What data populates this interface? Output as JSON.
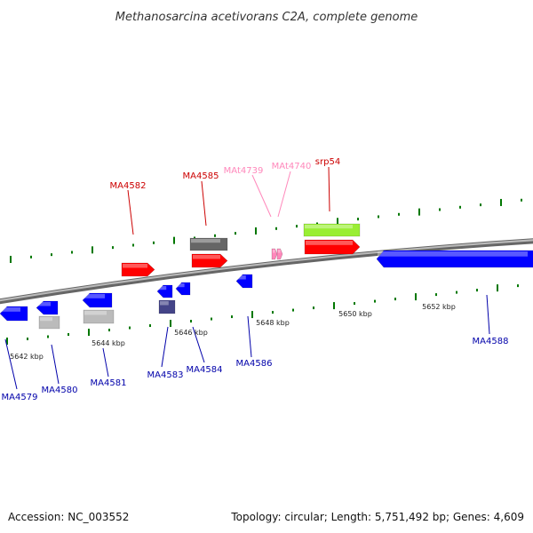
{
  "title": "Methanosarcina acetivorans C2A, complete genome",
  "footer": {
    "accession": "Accession: NC_003552",
    "summary": "Topology: circular; Length: 5,751,492 bp; Genes: 4,609"
  },
  "colors": {
    "red": "#ff0000",
    "blue": "#0000ff",
    "pink": "#ff88bb",
    "navy": "#0000aa",
    "dark_red": "#cc0000",
    "green_tick": "#007700",
    "gray_backbone": "#888888",
    "gray_gene": "#666666",
    "light_gray_gene": "#bbbbbb",
    "slate_gene": "#444488",
    "lime_gene": "#99ee33"
  },
  "tick_labels": [
    {
      "text": "5642 kbp",
      "name": "tick-label-5642"
    },
    {
      "text": "5644 kbp",
      "name": "tick-label-5644"
    },
    {
      "text": "5646 kbp",
      "name": "tick-label-5646"
    },
    {
      "text": "5648 kbp",
      "name": "tick-label-5648"
    },
    {
      "text": "5650 kbp",
      "name": "tick-label-5650"
    },
    {
      "text": "5652 kbp",
      "name": "tick-label-5652"
    }
  ],
  "gene_labels": [
    {
      "text": "MA4582",
      "name": "gene-label-ma4582",
      "color": "#cc0000"
    },
    {
      "text": "MA4585",
      "name": "gene-label-ma4585",
      "color": "#cc0000"
    },
    {
      "text": "MAt4739",
      "name": "gene-label-mat4739",
      "color": "#ff88bb"
    },
    {
      "text": "MAt4740",
      "name": "gene-label-mat4740",
      "color": "#ff88bb"
    },
    {
      "text": "srp54",
      "name": "gene-label-srp54",
      "color": "#cc0000"
    },
    {
      "text": "MA4579",
      "name": "gene-label-ma4579",
      "color": "#0000aa"
    },
    {
      "text": "MA4580",
      "name": "gene-label-ma4580",
      "color": "#0000aa"
    },
    {
      "text": "MA4581",
      "name": "gene-label-ma4581",
      "color": "#0000aa"
    },
    {
      "text": "MA4583",
      "name": "gene-label-ma4583",
      "color": "#0000aa"
    },
    {
      "text": "MA4584",
      "name": "gene-label-ma4584",
      "color": "#0000aa"
    },
    {
      "text": "MA4586",
      "name": "gene-label-ma4586",
      "color": "#0000aa"
    },
    {
      "text": "MA4588",
      "name": "gene-label-ma4588",
      "color": "#0000aa"
    }
  ]
}
